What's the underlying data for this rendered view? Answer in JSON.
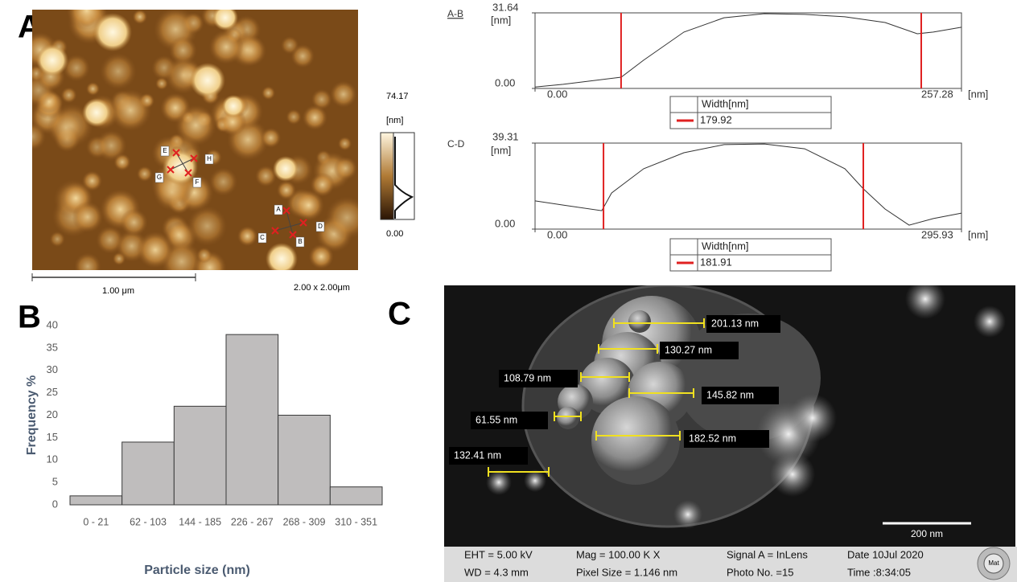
{
  "panel_labels": {
    "a": "A",
    "b": "B",
    "c": "C"
  },
  "afm": {
    "markers": [
      "A",
      "B",
      "C",
      "D",
      "E",
      "F",
      "G",
      "H"
    ],
    "colorbar": {
      "max": "74.17",
      "unit": "[nm]",
      "min": "0.00"
    },
    "scale_bar": "1.00 μm",
    "scan_size": "2.00 x 2.00μm"
  },
  "chart_data": [
    {
      "type": "bar",
      "categories": [
        "0 - 21",
        "62 - 103",
        "144 - 185",
        "226 - 267",
        "268 - 309",
        "310 - 351"
      ],
      "values": [
        2,
        14,
        22,
        38,
        20,
        4
      ],
      "color": "#bfbdbd",
      "ylim": [
        0,
        40
      ],
      "yticks": [
        0,
        5,
        10,
        15,
        20,
        25,
        30,
        35,
        40
      ],
      "y_label": "Frequency  %",
      "x_label": "Particle size (nm)"
    },
    {
      "type": "line",
      "title": "A-B",
      "y_unit": "[nm]",
      "x_unit": "[nm]",
      "color": "#333333",
      "x": [
        0,
        17,
        52,
        65.5,
        89.8,
        114,
        138.3,
        162.6,
        186.9,
        211.2,
        230.6,
        240.3,
        257.28
      ],
      "values": [
        0.6,
        1.7,
        4.7,
        11.8,
        23.6,
        29.6,
        31.3,
        31,
        30,
        27.6,
        22.9,
        23.6,
        25.6
      ],
      "xlim": [
        0,
        257.28
      ],
      "xticks": [
        {
          "value": 0,
          "label": "0.00"
        },
        257.28
      ],
      "ylim": [
        0,
        31.64
      ],
      "yticks": [
        {
          "value": 0,
          "label": "0.00"
        },
        31.64
      ],
      "cursors": [
        51.9,
        233.0
      ],
      "cursor_color": "#e02020",
      "width_header": "Width[nm]",
      "width_value": 179.92
    },
    {
      "type": "line",
      "title": "C-D",
      "y_unit": "[nm]",
      "x_unit": "[nm]",
      "color": "#333333",
      "x": [
        0,
        19.5,
        46.3,
        53.1,
        75.4,
        103.3,
        131.2,
        159.2,
        187.1,
        215,
        227.8,
        242.9,
        259.6,
        276.4,
        295.93
      ],
      "values": [
        12.9,
        11,
        8.4,
        16.5,
        27.6,
        34.9,
        38.6,
        38.9,
        36.7,
        27.6,
        18.4,
        9.2,
        1.8,
        4.8,
        7.3
      ],
      "xlim": [
        0,
        295.93
      ],
      "xticks": [
        {
          "value": 0,
          "label": "0.00"
        },
        295.93
      ],
      "ylim": [
        0,
        39.31
      ],
      "yticks": [
        {
          "value": 0,
          "label": "0.00"
        },
        39.31
      ],
      "cursors": [
        47.5,
        227.8
      ],
      "cursor_color": "#e02020",
      "width_header": "Width[nm]",
      "width_value": 181.91
    }
  ],
  "sem": {
    "measurements": [
      "201.13 nm",
      "130.27 nm",
      "108.79 nm",
      "145.82 nm",
      "61.55 nm",
      "182.52 nm",
      "132.41 nm"
    ],
    "scale_bar": "200 nm",
    "info": [
      [
        "EHT = 5.00 kV",
        "Mag = 100.00 K X",
        "Signal A = InLens",
        "Date 10Jul 2020"
      ],
      [
        "WD = 4.3 mm",
        "Pixel Size = 1.146 nm",
        "Photo No. =15",
        "Time :8:34:05"
      ]
    ],
    "logo": "Mat"
  }
}
